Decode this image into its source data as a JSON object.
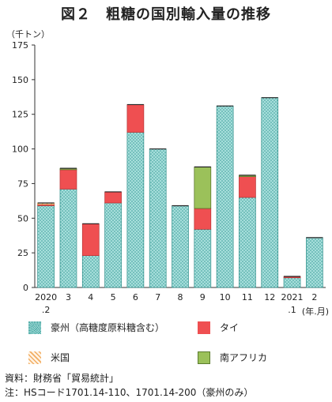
{
  "chart_data": {
    "type": "bar",
    "stacked": true,
    "title": "図２　粗糖の国別輸入量の推移",
    "ylabel": "（千トン）",
    "xlabel_unit": "(年.月)",
    "ylim": [
      0,
      175
    ],
    "yticks": [
      "0",
      "25",
      "50",
      "75",
      "100",
      "125",
      "150",
      "175"
    ],
    "categories": [
      {
        "top": "2020",
        "bottom": ".2"
      },
      {
        "top": "3",
        "bottom": ""
      },
      {
        "top": "4",
        "bottom": ""
      },
      {
        "top": "5",
        "bottom": ""
      },
      {
        "top": "6",
        "bottom": ""
      },
      {
        "top": "7",
        "bottom": ""
      },
      {
        "top": "8",
        "bottom": ""
      },
      {
        "top": "9",
        "bottom": ""
      },
      {
        "top": "10",
        "bottom": ""
      },
      {
        "top": "11",
        "bottom": ""
      },
      {
        "top": "12",
        "bottom": ""
      },
      {
        "top": "2021",
        "bottom": ".1"
      },
      {
        "top": "2",
        "bottom": ""
      }
    ],
    "series": [
      {
        "name": "豪州（高糖度原料糖含む）",
        "color": "#9fd9d6",
        "pattern": "dots",
        "values": [
          59,
          71,
          23,
          61,
          112,
          100,
          59,
          42,
          131,
          65,
          137,
          7,
          36
        ]
      },
      {
        "name": "タイ",
        "color": "#ef4f51",
        "pattern": "solid",
        "values": [
          1,
          14,
          23,
          8,
          20,
          0,
          0,
          15,
          0,
          15,
          0,
          1,
          0
        ]
      },
      {
        "name": "米国",
        "color": "#f6c58e",
        "pattern": "hatch",
        "values": [
          1,
          0,
          0,
          0,
          0,
          0,
          0,
          0,
          0,
          0,
          0,
          0,
          0
        ]
      },
      {
        "name": "南アフリカ",
        "color": "#9bc15a",
        "pattern": "solid",
        "values": [
          0,
          1,
          0,
          0,
          0,
          0,
          0,
          30,
          0,
          1,
          0,
          0,
          0
        ]
      }
    ],
    "grid": false,
    "legend_position": "bottom"
  },
  "footnotes": {
    "source": "資料：財務省「貿易統計」",
    "note": "注：HSコード1701.14-110、1701.14-200（豪州のみ）"
  }
}
